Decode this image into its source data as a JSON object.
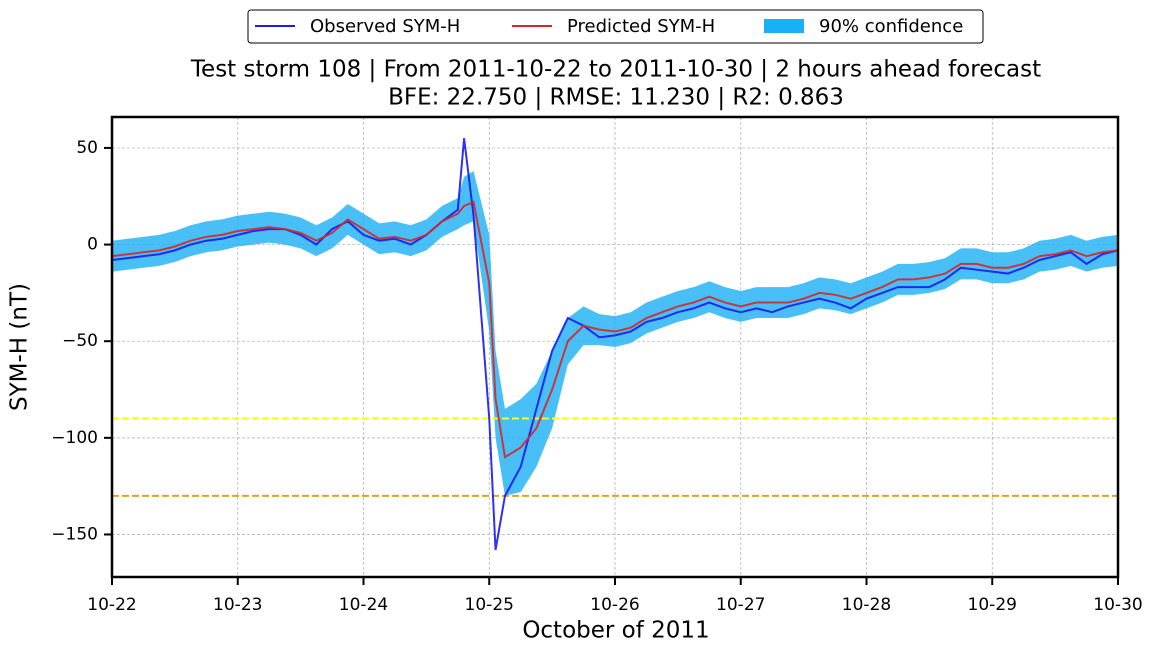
{
  "chart_data": {
    "type": "line",
    "title": "Test storm 108 | From 2011-10-22 to 2011-10-30 | 2 hours ahead forecast",
    "subtitle": "BFE: 22.750 | RMSE: 11.230 | R2: 0.863",
    "xlabel": "October of 2011",
    "ylabel": "SYM-H (nT)",
    "x": [
      22,
      22.125,
      22.25,
      22.375,
      22.5,
      22.625,
      22.75,
      22.875,
      23,
      23.125,
      23.25,
      23.375,
      23.5,
      23.625,
      23.75,
      23.875,
      24,
      24.125,
      24.25,
      24.375,
      24.5,
      24.625,
      24.75,
      24.8,
      24.875,
      25,
      25.05,
      25.125,
      25.25,
      25.375,
      25.5,
      25.625,
      25.75,
      25.875,
      26,
      26.125,
      26.25,
      26.375,
      26.5,
      26.625,
      26.75,
      26.875,
      27,
      27.125,
      27.25,
      27.375,
      27.5,
      27.625,
      27.75,
      27.875,
      28,
      28.125,
      28.25,
      28.375,
      28.5,
      28.625,
      28.75,
      28.875,
      29,
      29.125,
      29.25,
      29.375,
      29.5,
      29.625,
      29.75,
      29.875,
      30
    ],
    "series": [
      {
        "name": "Observed SYM-H",
        "color": "#1a1aee",
        "values": [
          -8,
          -7,
          -6,
          -5,
          -3,
          0,
          2,
          3,
          5,
          7,
          8,
          8,
          5,
          0,
          8,
          12,
          5,
          2,
          3,
          0,
          5,
          12,
          18,
          55,
          15,
          -90,
          -158,
          -130,
          -115,
          -85,
          -55,
          -38,
          -42,
          -48,
          -47,
          -45,
          -40,
          -38,
          -35,
          -33,
          -30,
          -33,
          -35,
          -33,
          -35,
          -32,
          -30,
          -28,
          -30,
          -33,
          -28,
          -25,
          -22,
          -22,
          -22,
          -18,
          -12,
          -13,
          -14,
          -15,
          -12,
          -8,
          -6,
          -4,
          -10,
          -5,
          -3
        ]
      },
      {
        "name": "Predicted SYM-H",
        "color": "#d62728",
        "values": [
          -6,
          -5,
          -4,
          -3,
          -1,
          2,
          4,
          5,
          7,
          8,
          9,
          8,
          6,
          2,
          6,
          13,
          8,
          3,
          4,
          2,
          5,
          12,
          16,
          20,
          22,
          -20,
          -80,
          -110,
          -105,
          -95,
          -75,
          -50,
          -42,
          -44,
          -45,
          -43,
          -38,
          -35,
          -32,
          -30,
          -27,
          -30,
          -32,
          -30,
          -30,
          -30,
          -28,
          -25,
          -26,
          -28,
          -25,
          -22,
          -18,
          -18,
          -17,
          -15,
          -10,
          -10,
          -12,
          -12,
          -10,
          -6,
          -5,
          -3,
          -6,
          -4,
          -3
        ]
      }
    ],
    "band": {
      "name": "90% confidence",
      "color": "#1ab0f5",
      "lower": [
        -14,
        -13,
        -12,
        -11,
        -9,
        -6,
        -4,
        -3,
        -1,
        0,
        1,
        0,
        -2,
        -6,
        -2,
        5,
        0,
        -5,
        -4,
        -6,
        -3,
        4,
        8,
        10,
        12,
        -45,
        -100,
        -130,
        -128,
        -115,
        -95,
        -62,
        -52,
        -52,
        -53,
        -51,
        -46,
        -43,
        -40,
        -38,
        -35,
        -38,
        -40,
        -38,
        -38,
        -38,
        -36,
        -33,
        -34,
        -36,
        -33,
        -30,
        -26,
        -26,
        -25,
        -23,
        -18,
        -18,
        -20,
        -20,
        -18,
        -14,
        -13,
        -11,
        -14,
        -12,
        -11
      ],
      "upper": [
        2,
        3,
        4,
        5,
        7,
        10,
        12,
        13,
        15,
        16,
        17,
        16,
        14,
        10,
        14,
        21,
        16,
        11,
        12,
        10,
        13,
        20,
        24,
        35,
        38,
        5,
        -55,
        -85,
        -80,
        -72,
        -55,
        -38,
        -32,
        -36,
        -37,
        -35,
        -30,
        -27,
        -24,
        -22,
        -19,
        -22,
        -24,
        -22,
        -22,
        -22,
        -20,
        -17,
        -18,
        -20,
        -17,
        -14,
        -10,
        -10,
        -9,
        -7,
        -2,
        -2,
        -4,
        -4,
        -2,
        2,
        3,
        5,
        2,
        4,
        5
      ]
    },
    "hlines": [
      {
        "value": -90,
        "color": "#ffff00"
      },
      {
        "value": -130,
        "color": "#daa520"
      }
    ],
    "xlim": [
      22,
      30
    ],
    "xticks": [
      {
        "value": 22,
        "label": "10-22"
      },
      {
        "value": 23,
        "label": "10-23"
      },
      {
        "value": 24,
        "label": "10-24"
      },
      {
        "value": 25,
        "label": "10-25"
      },
      {
        "value": 26,
        "label": "10-26"
      },
      {
        "value": 27,
        "label": "10-27"
      },
      {
        "value": 28,
        "label": "10-28"
      },
      {
        "value": 29,
        "label": "10-29"
      },
      {
        "value": 30,
        "label": "10-30"
      }
    ],
    "ylim": [
      -172,
      66
    ],
    "yticks": [
      {
        "value": -150,
        "label": "−150"
      },
      {
        "value": -100,
        "label": "−100"
      },
      {
        "value": -50,
        "label": "−50"
      },
      0,
      50
    ],
    "grid": true,
    "legend": "top"
  }
}
